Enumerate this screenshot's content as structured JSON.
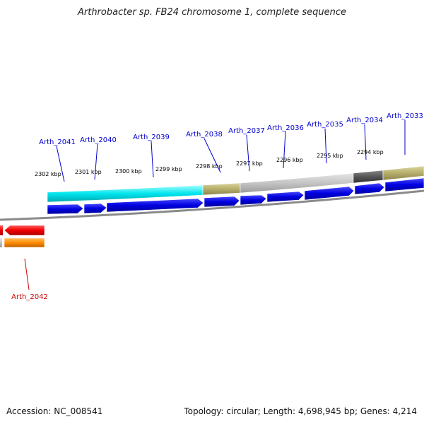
{
  "header": {
    "title": "Arthrobacter sp. FB24 chromosome 1, complete sequence"
  },
  "footer": {
    "accession_label": "Accession:",
    "accession": "NC_008541",
    "topology_label": "Topology:",
    "topology": "circular",
    "length_label": "Length:",
    "length": "4,698,945 bp",
    "genes_label": "Genes:",
    "genes": "4,214"
  },
  "map": {
    "scale_labels": [
      "2302 kbp",
      "2301 kbp",
      "2300 kbp",
      "2299 kbp",
      "2298 kbp",
      "2297 kbp",
      "2296 kbp",
      "2295 kbp",
      "2294 kbp"
    ],
    "gene_labels_forward": [
      "Arth_2041",
      "Arth_2040",
      "Arth_2039",
      "Arth_2038",
      "Arth_2037",
      "Arth_2036",
      "Arth_2035",
      "Arth_2034",
      "Arth_2033"
    ],
    "gene_labels_reverse": [
      "Arth_2042"
    ],
    "colors": {
      "forward_label": "#0000cc",
      "reverse_label": "#cc0000",
      "forward_gene": "#0000e0",
      "reverse_gene": "#ee0000",
      "reverse_cog": "#ff8c00",
      "cog_cyan": "#00e5ee",
      "cog_olive": "#b5ad6a",
      "cog_gray": "#c4c4c4",
      "cog_dark": "#555555",
      "backbone": "#8a8a8a",
      "tick": "#008000"
    }
  }
}
